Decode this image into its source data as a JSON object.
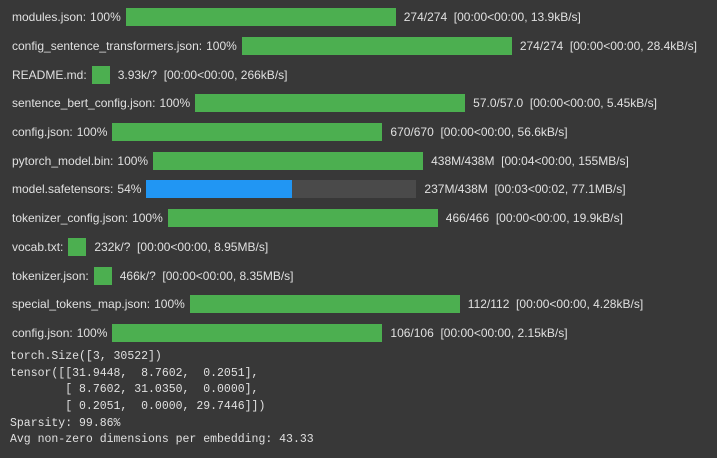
{
  "progress_rows": [
    {
      "label": "modules.json:",
      "percent_label": "100%",
      "progress": 100,
      "color": "#4caf50",
      "stats": "274/274  [00:00<00:00, 13.9kB/s]"
    },
    {
      "label": "config_sentence_transformers.json:",
      "percent_label": "100%",
      "progress": 100,
      "color": "#4caf50",
      "stats": "274/274  [00:00<00:00, 28.4kB/s]"
    },
    {
      "label": "README.md:",
      "percent_label": null,
      "progress": null,
      "color": "#4caf50",
      "stats": "3.93k/?  [00:00<00:00, 266kB/s]"
    },
    {
      "label": "sentence_bert_config.json:",
      "percent_label": "100%",
      "progress": 100,
      "color": "#4caf50",
      "stats": "57.0/57.0  [00:00<00:00, 5.45kB/s]"
    },
    {
      "label": "config.json:",
      "percent_label": "100%",
      "progress": 100,
      "color": "#4caf50",
      "stats": "670/670  [00:00<00:00, 56.6kB/s]"
    },
    {
      "label": "pytorch_model.bin:",
      "percent_label": "100%",
      "progress": 100,
      "color": "#4caf50",
      "stats": "438M/438M  [00:04<00:00, 155MB/s]"
    },
    {
      "label": "model.safetensors:",
      "percent_label": "54%",
      "progress": 54,
      "color": "#2196f3",
      "stats": "237M/438M  [00:03<00:02, 77.1MB/s]"
    },
    {
      "label": "tokenizer_config.json:",
      "percent_label": "100%",
      "progress": 100,
      "color": "#4caf50",
      "stats": "466/466  [00:00<00:00, 19.9kB/s]"
    },
    {
      "label": "vocab.txt:",
      "percent_label": null,
      "progress": null,
      "color": "#4caf50",
      "stats": "232k/?  [00:00<00:00, 8.95MB/s]"
    },
    {
      "label": "tokenizer.json:",
      "percent_label": null,
      "progress": null,
      "color": "#4caf50",
      "stats": "466k/?  [00:00<00:00, 8.35MB/s]"
    },
    {
      "label": "special_tokens_map.json:",
      "percent_label": "100%",
      "progress": 100,
      "color": "#4caf50",
      "stats": "112/112  [00:00<00:00, 4.28kB/s]"
    },
    {
      "label": "config.json:",
      "percent_label": "100%",
      "progress": 100,
      "color": "#4caf50",
      "stats": "106/106  [00:00<00:00, 2.15kB/s]"
    }
  ],
  "output_lines": [
    "torch.Size([3, 30522])",
    "tensor([[31.9448,  8.7602,  0.2051],",
    "        [ 8.7602, 31.0350,  0.0000],",
    "        [ 0.2051,  0.0000, 29.7446]])",
    "Sparsity: 99.86%",
    "Avg non-zero dimensions per embedding: 43.33"
  ]
}
